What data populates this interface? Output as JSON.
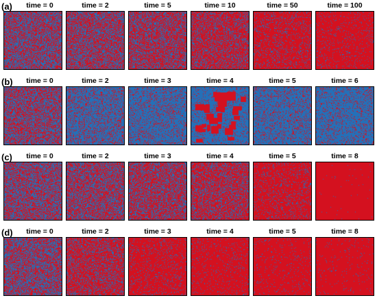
{
  "colors": {
    "red": "#d4111f",
    "blue": "#2470b8",
    "frame": "#000000"
  },
  "rows": [
    {
      "label": "(a)",
      "panels": [
        {
          "title": "time = 0",
          "red_fraction": 0.5,
          "clusters": 0
        },
        {
          "title": "time = 2",
          "red_fraction": 0.55,
          "clusters": 0
        },
        {
          "title": "time = 5",
          "red_fraction": 0.6,
          "clusters": 0
        },
        {
          "title": "time = 10",
          "red_fraction": 0.7,
          "clusters": 0
        },
        {
          "title": "time = 50",
          "red_fraction": 0.85,
          "clusters": 0
        },
        {
          "title": "time = 100",
          "red_fraction": 0.92,
          "clusters": 0
        }
      ]
    },
    {
      "label": "(b)",
      "panels": [
        {
          "title": "time = 0",
          "red_fraction": 0.5,
          "clusters": 0
        },
        {
          "title": "time = 2",
          "red_fraction": 0.25,
          "clusters": 0
        },
        {
          "title": "time = 3",
          "red_fraction": 0.2,
          "clusters": 0
        },
        {
          "title": "time = 4",
          "red_fraction": 0.12,
          "clusters": 30
        },
        {
          "title": "time = 5",
          "red_fraction": 0.2,
          "clusters": 0
        },
        {
          "title": "time = 6",
          "red_fraction": 0.15,
          "clusters": 0
        }
      ]
    },
    {
      "label": "(c)",
      "panels": [
        {
          "title": "time = 0",
          "red_fraction": 0.5,
          "clusters": 0
        },
        {
          "title": "time = 2",
          "red_fraction": 0.55,
          "clusters": 0
        },
        {
          "title": "time = 3",
          "red_fraction": 0.6,
          "clusters": 0
        },
        {
          "title": "time = 4",
          "red_fraction": 0.7,
          "clusters": 0
        },
        {
          "title": "time = 5",
          "red_fraction": 0.88,
          "clusters": 0
        },
        {
          "title": "time = 8",
          "red_fraction": 0.995,
          "clusters": 0
        }
      ]
    },
    {
      "label": "(d)",
      "panels": [
        {
          "title": "time = 0",
          "red_fraction": 0.5,
          "clusters": 0
        },
        {
          "title": "time = 2",
          "red_fraction": 0.72,
          "clusters": 0
        },
        {
          "title": "time = 3",
          "red_fraction": 0.9,
          "clusters": 0
        },
        {
          "title": "time = 4",
          "red_fraction": 0.93,
          "clusters": 0
        },
        {
          "title": "time = 5",
          "red_fraction": 0.95,
          "clusters": 0
        },
        {
          "title": "time = 8",
          "red_fraction": 0.97,
          "clusters": 0
        }
      ]
    }
  ]
}
